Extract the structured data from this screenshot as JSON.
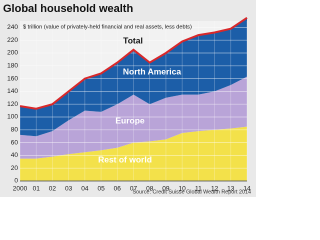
{
  "chart_data": {
    "type": "stacked-area",
    "title": "Global household wealth",
    "subtitle": "$ trillion (value of privately-held financial and real assets, less debts)",
    "source": "Source: Credit Suisse Global Wealth Report 2014",
    "categories": [
      "2000",
      "01",
      "02",
      "03",
      "04",
      "05",
      "06",
      "07",
      "08",
      "09",
      "10",
      "11",
      "12",
      "13",
      "14"
    ],
    "series": [
      {
        "name": "Rest of world",
        "color": "#f3e14a",
        "values": [
          35,
          35,
          38,
          42,
          45,
          48,
          52,
          60,
          62,
          65,
          75,
          78,
          80,
          82,
          85
        ]
      },
      {
        "name": "Europe",
        "color": "#b9a4d8",
        "values": [
          37,
          35,
          40,
          53,
          65,
          60,
          68,
          75,
          58,
          65,
          60,
          57,
          60,
          68,
          78
        ]
      },
      {
        "name": "North America",
        "color": "#1c5ea8",
        "values": [
          45,
          43,
          42,
          45,
          50,
          60,
          65,
          70,
          65,
          70,
          83,
          93,
          92,
          88,
          92
        ]
      }
    ],
    "total": {
      "name": "Total",
      "color": "#d8282a",
      "values": [
        117,
        113,
        120,
        140,
        160,
        168,
        185,
        205,
        185,
        200,
        218,
        228,
        232,
        238,
        255
      ]
    },
    "ylim": [
      0,
      250
    ],
    "yticks": [
      0,
      20,
      40,
      60,
      80,
      100,
      120,
      140,
      160,
      180,
      200,
      220,
      240
    ],
    "grid": true
  }
}
